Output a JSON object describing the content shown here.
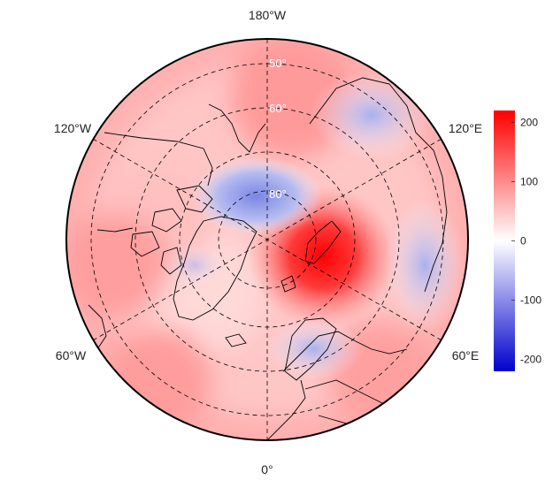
{
  "map": {
    "projection": "north polar stereographic",
    "longitude_labels": {
      "top": "180°W",
      "upper_left": "120°W",
      "upper_right": "120°E",
      "lower_left": "60°W",
      "lower_right": "60°E",
      "bottom": "0°"
    },
    "latitude_labels": [
      "50°",
      "60°",
      "80°"
    ],
    "anomaly_features": [
      {
        "description": "strong positive center over Barents/Kara Sea",
        "value": 200
      },
      {
        "description": "negative area over Arctic Ocean near Beaufort Sea",
        "value": -60
      },
      {
        "description": "negative area over eastern Siberia / Chukotka",
        "value": -45
      },
      {
        "description": "negative patch over Scandinavia / Baltic",
        "value": -40
      },
      {
        "description": "negative patch over western Siberia",
        "value": -30
      },
      {
        "description": "slightly negative over northern Canada / Greenland west",
        "value": -15
      }
    ],
    "colors": {
      "positive": "#ff0000",
      "neutral": "#ffffff",
      "negative": "#0000cc"
    }
  },
  "colorbar": {
    "min": -220,
    "max": 220,
    "ticks": [
      "200",
      "100",
      "0",
      "-100",
      "-200"
    ],
    "tick_values": [
      200,
      100,
      0,
      -100,
      -200
    ],
    "colors": [
      "#0000cc",
      "#ffffff",
      "#ff0000"
    ]
  }
}
